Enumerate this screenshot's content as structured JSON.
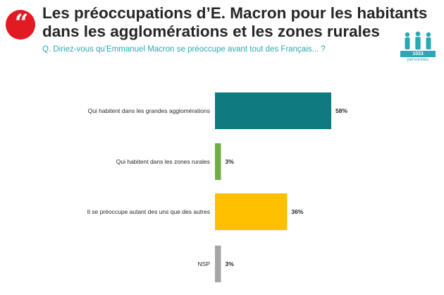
{
  "header": {
    "title": "Les préoccupations d’E. Macron pour les habitants dans les agglomérations et les zones rurales",
    "question": "Q. Diriez-vous qu'Emmanuel Macron se préoccupe avant tout des Français... ?",
    "sample_size": "1023",
    "sample_unit": "personnes"
  },
  "colors": {
    "brand_red": "#e11a23",
    "accent_teal": "#2aa8b3"
  },
  "chart_data": {
    "type": "bar",
    "orientation": "horizontal",
    "categories": [
      "Qui habitent dans les grandes agglomérations",
      "Qui habitent dans les zones rurales",
      "Il se préoccupe autant des uns que des autres",
      "NSP"
    ],
    "values": [
      58,
      3,
      36,
      3
    ],
    "value_labels": [
      "58%",
      "3%",
      "36%",
      "3%"
    ],
    "colors": [
      "#0f7b80",
      "#70ad47",
      "#ffc000",
      "#a6a6a6"
    ],
    "unit": "%",
    "xlim": [
      0,
      100
    ],
    "grid": false,
    "legend": "none"
  }
}
